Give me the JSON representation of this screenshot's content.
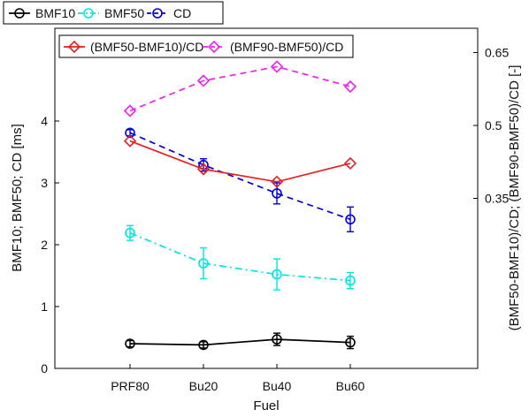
{
  "chart_data": {
    "type": "line",
    "categories": [
      "PRF80",
      "Bu20",
      "Bu40",
      "Bu60"
    ],
    "xlabel": "Fuel",
    "ylabel_left": "BMF10; BMF50; CD [ms]",
    "ylabel_right": "(BMF50-BMF10)/CD; (BMF90-BMF50)/CD [-]",
    "ylim_left": [
      0,
      5.5
    ],
    "yticks_left": [
      0,
      1,
      2,
      3,
      4
    ],
    "ylim_right": [
      0,
      0.7
    ],
    "yticks_right": [
      0.35,
      0.5,
      0.65
    ],
    "ytick_labels_right": [
      "0.35",
      "0.5",
      "0.65"
    ],
    "legend_top": [
      "BMF10",
      "BMF50",
      "CD"
    ],
    "legend_inner": [
      "(BMF50-BMF10)/CD",
      "(BMF90-BMF50)/CD"
    ],
    "series": [
      {
        "name": "BMF10",
        "axis": "left",
        "values": [
          0.4,
          0.38,
          0.47,
          0.42
        ],
        "err": [
          0.05,
          0.05,
          0.1,
          0.1
        ],
        "color": "#000000",
        "dash": "solid",
        "marker": "circle"
      },
      {
        "name": "BMF50",
        "axis": "left",
        "values": [
          2.19,
          1.7,
          1.52,
          1.42
        ],
        "err": [
          0.12,
          0.25,
          0.25,
          0.13
        ],
        "color": "#00e5e5",
        "dash": "dashdot",
        "marker": "circle"
      },
      {
        "name": "CD",
        "axis": "left",
        "values": [
          3.81,
          3.29,
          2.83,
          2.41
        ],
        "err": [
          0.05,
          0.1,
          0.17,
          0.2
        ],
        "color": "#0000dd",
        "dash": "dashed",
        "marker": "circle"
      },
      {
        "name": "(BMF50-BMF10)/CD",
        "axis": "right",
        "values": [
          0.468,
          0.41,
          0.384,
          0.422
        ],
        "color": "#e52020",
        "dash": "solid",
        "marker": "diamond"
      },
      {
        "name": "(BMF90-BMF50)/CD",
        "axis": "right",
        "values": [
          0.53,
          0.592,
          0.621,
          0.58
        ],
        "color": "#ee22ee",
        "dash": "dashed",
        "marker": "diamond"
      }
    ]
  }
}
